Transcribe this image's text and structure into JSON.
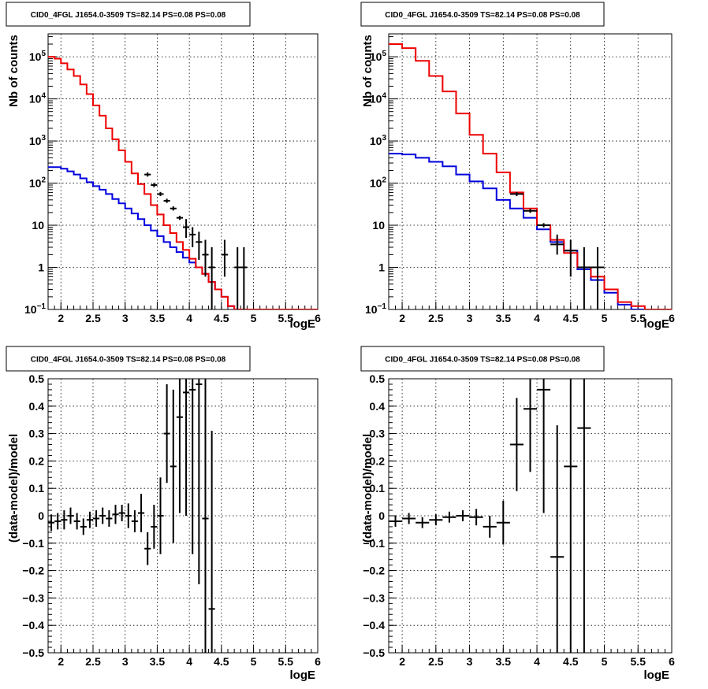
{
  "chart_data": [
    {
      "type": "histogram-log",
      "title": "CID0_4FGL J1654.0-3509 TS=82.14 PS=0.08 PS=0.08",
      "xlabel": "logE",
      "ylabel": "Nb of counts",
      "xlim": [
        1.8,
        6.0
      ],
      "ylim": [
        0.1,
        350000
      ],
      "ylog": true,
      "grid": true,
      "xticks": [
        "2",
        "2.5",
        "3",
        "3.5",
        "4",
        "4.5",
        "5",
        "5.5",
        "6"
      ],
      "yticks": [
        {
          "v": 0.1,
          "b": "10",
          "e": "−1"
        },
        {
          "v": 1,
          "b": "1",
          "e": ""
        },
        {
          "v": 10,
          "b": "10",
          "e": ""
        },
        {
          "v": 100,
          "b": "10",
          "e": "2"
        },
        {
          "v": 1000,
          "b": "10",
          "e": "3"
        },
        {
          "v": 10000,
          "b": "10",
          "e": "4"
        },
        {
          "v": 100000,
          "b": "10",
          "e": "5"
        }
      ],
      "series": [
        {
          "color": "#ee0000",
          "step": 0.1,
          "start": 1.8,
          "values": [
            100000,
            90000,
            70000,
            50000,
            35000,
            22000,
            13000,
            7000,
            4000,
            2000,
            1100,
            600,
            320,
            170,
            95,
            55,
            30,
            18,
            10,
            6.5,
            4,
            2.6,
            1.6,
            1.0,
            0.7,
            0.45,
            0.3,
            0.2,
            0.12,
            0.1,
            0.1,
            0.1,
            0.1,
            0.1,
            0.1,
            0.1,
            0.1,
            0.1,
            0.1,
            0.1,
            0.1,
            0.1
          ]
        },
        {
          "color": "#0000dd",
          "step": 0.1,
          "start": 1.8,
          "values": [
            240,
            240,
            220,
            190,
            160,
            130,
            105,
            85,
            70,
            55,
            42,
            33,
            25,
            19,
            14,
            10,
            7.5,
            5.5,
            4,
            3,
            2.3,
            1.7,
            1.3,
            1.0,
            0.7,
            0.45,
            0.3,
            0.2,
            0.12,
            0.1,
            0.1,
            0.1,
            0.1,
            0.1,
            0.1,
            0.1,
            0.1,
            0.1,
            0.1,
            0.1,
            0.1,
            0.1
          ]
        }
      ],
      "points": [
        {
          "x": 3.35,
          "y": 160,
          "hw": 0.05
        },
        {
          "x": 3.45,
          "y": 90,
          "hw": 0.05
        },
        {
          "x": 3.55,
          "y": 55,
          "hw": 0.05
        },
        {
          "x": 3.65,
          "y": 38,
          "hw": 0.05
        },
        {
          "x": 3.75,
          "y": 25,
          "hw": 0.05
        },
        {
          "x": 3.85,
          "y": 15,
          "hw": 0.05
        },
        {
          "x": 3.95,
          "y": 9,
          "hw": 0.05,
          "lo": 5,
          "hi": 14
        },
        {
          "x": 4.05,
          "y": 6,
          "hw": 0.05,
          "lo": 3,
          "hi": 9
        },
        {
          "x": 4.15,
          "y": 4,
          "hw": 0.05,
          "lo": 1.5,
          "hi": 7
        },
        {
          "x": 4.25,
          "y": 2,
          "hw": 0.05,
          "lo": 0.6,
          "hi": 4.5
        },
        {
          "x": 4.35,
          "y": 1,
          "hw": 0.05,
          "lo": 0.1,
          "hi": 3
        },
        {
          "x": 4.55,
          "y": 2,
          "hw": 0.05,
          "lo": 0.6,
          "hi": 4.5
        },
        {
          "x": 4.75,
          "y": 1,
          "hw": 0.05,
          "lo": 0.1,
          "hi": 3
        },
        {
          "x": 4.85,
          "y": 1,
          "hw": 0.05,
          "lo": 0.1,
          "hi": 3
        }
      ]
    },
    {
      "type": "histogram-log",
      "title": "CID0_4FGL J1654.0-3509 TS=82.14 PS=0.08 PS=0.08",
      "xlabel": "logE",
      "ylabel": "Nb of counts",
      "xlim": [
        1.8,
        6.0
      ],
      "ylim": [
        0.1,
        350000
      ],
      "ylog": true,
      "grid": true,
      "xticks": [
        "2",
        "2.5",
        "3",
        "3.5",
        "4",
        "4.5",
        "5",
        "5.5",
        "6"
      ],
      "yticks": [
        {
          "v": 0.1,
          "b": "10",
          "e": "−1"
        },
        {
          "v": 1,
          "b": "1",
          "e": ""
        },
        {
          "v": 10,
          "b": "10",
          "e": ""
        },
        {
          "v": 100,
          "b": "10",
          "e": "2"
        },
        {
          "v": 1000,
          "b": "10",
          "e": "3"
        },
        {
          "v": 10000,
          "b": "10",
          "e": "4"
        },
        {
          "v": 100000,
          "b": "10",
          "e": "5"
        }
      ],
      "series": [
        {
          "color": "#ee0000",
          "step": 0.2,
          "start": 1.8,
          "values": [
            200000,
            160000,
            80000,
            35000,
            15000,
            4500,
            1400,
            500,
            180,
            60,
            25,
            10,
            4.5,
            2.2,
            1.0,
            0.6,
            0.3,
            0.15,
            0.12,
            0.1,
            0.1
          ]
        },
        {
          "color": "#0000dd",
          "step": 0.2,
          "start": 1.8,
          "values": [
            500,
            480,
            400,
            320,
            250,
            160,
            110,
            75,
            40,
            25,
            15,
            8,
            4,
            2.5,
            0.9,
            0.5,
            0.25,
            0.13,
            0.1,
            0.1,
            0.1
          ]
        }
      ],
      "points": [
        {
          "x": 3.7,
          "y": 55,
          "hw": 0.1
        },
        {
          "x": 3.9,
          "y": 22,
          "hw": 0.1
        },
        {
          "x": 4.1,
          "y": 10,
          "hw": 0.1
        },
        {
          "x": 4.3,
          "y": 3.5,
          "hw": 0.1,
          "lo": 2,
          "hi": 6
        },
        {
          "x": 4.5,
          "y": 2.5,
          "hw": 0.1,
          "lo": 0.6,
          "hi": 4.5
        },
        {
          "x": 4.7,
          "y": 1,
          "hw": 0.1,
          "lo": 0.1,
          "hi": 3
        },
        {
          "x": 4.9,
          "y": 1,
          "hw": 0.1,
          "lo": 0.1,
          "hi": 3
        }
      ]
    },
    {
      "type": "residuals",
      "title": "CID0_4FGL J1654.0-3509 TS=82.14 PS=0.08 PS=0.08",
      "xlabel": "logE",
      "ylabel": "(data-model)/model",
      "xlim": [
        1.8,
        6.0
      ],
      "ylim": [
        -0.5,
        0.5
      ],
      "grid": true,
      "xticks": [
        "2",
        "2.5",
        "3",
        "3.5",
        "4",
        "4.5",
        "5",
        "5.5",
        "6"
      ],
      "yticks": [
        "−0.5",
        "−0.4",
        "−0.3",
        "−0.2",
        "−0.1",
        "0",
        "0.1",
        "0.2",
        "0.3",
        "0.4",
        "0.5"
      ],
      "points": [
        {
          "x": 1.85,
          "y": -0.025,
          "err": 0.03,
          "hw": 0.05
        },
        {
          "x": 1.95,
          "y": -0.02,
          "err": 0.03,
          "hw": 0.05
        },
        {
          "x": 2.05,
          "y": -0.015,
          "err": 0.035,
          "hw": 0.05
        },
        {
          "x": 2.15,
          "y": 0.0,
          "err": 0.03,
          "hw": 0.05
        },
        {
          "x": 2.25,
          "y": -0.02,
          "err": 0.03,
          "hw": 0.05
        },
        {
          "x": 2.35,
          "y": -0.04,
          "err": 0.03,
          "hw": 0.05
        },
        {
          "x": 2.45,
          "y": -0.015,
          "err": 0.03,
          "hw": 0.05
        },
        {
          "x": 2.55,
          "y": -0.01,
          "err": 0.03,
          "hw": 0.05
        },
        {
          "x": 2.65,
          "y": 0.0,
          "err": 0.03,
          "hw": 0.05
        },
        {
          "x": 2.75,
          "y": -0.01,
          "err": 0.03,
          "hw": 0.05
        },
        {
          "x": 2.85,
          "y": 0.005,
          "err": 0.035,
          "hw": 0.05
        },
        {
          "x": 2.95,
          "y": 0.01,
          "err": 0.03,
          "hw": 0.05
        },
        {
          "x": 3.05,
          "y": 0.0,
          "err": 0.045,
          "hw": 0.05
        },
        {
          "x": 3.15,
          "y": -0.02,
          "err": 0.04,
          "hw": 0.05
        },
        {
          "x": 3.25,
          "y": 0.01,
          "err": 0.07,
          "hw": 0.05
        },
        {
          "x": 3.35,
          "y": -0.12,
          "err": 0.06,
          "hw": 0.05
        },
        {
          "x": 3.45,
          "y": -0.04,
          "err": 0.08,
          "hw": 0.05
        },
        {
          "x": 3.55,
          "y": 0.0,
          "err": 0.14,
          "hw": 0.05
        },
        {
          "x": 3.65,
          "y": 0.3,
          "err": 0.18,
          "hw": 0.05
        },
        {
          "x": 3.75,
          "y": 0.18,
          "err": 0.28,
          "hw": 0.05
        },
        {
          "x": 3.85,
          "y": 0.36,
          "err": 0.35,
          "hw": 0.05
        },
        {
          "x": 3.95,
          "y": 0.45,
          "err": 0.45,
          "hw": 0.05
        },
        {
          "x": 4.05,
          "y": 0.46,
          "err": 0.6,
          "hw": 0.05
        },
        {
          "x": 4.15,
          "y": 0.48,
          "err": 0.73,
          "hw": 0.05
        },
        {
          "x": 4.25,
          "y": -0.01,
          "err": 0.6,
          "hw": 0.05
        },
        {
          "x": 4.35,
          "y": -0.34,
          "err": 0.65,
          "hw": 0.05
        }
      ]
    },
    {
      "type": "residuals",
      "title": "CID0_4FGL J1654.0-3509 TS=82.14 PS=0.08 PS=0.08",
      "xlabel": "logE",
      "ylabel": "(data-model)/model",
      "xlim": [
        1.8,
        6.0
      ],
      "ylim": [
        -0.5,
        0.5
      ],
      "grid": true,
      "xticks": [
        "2",
        "2.5",
        "3",
        "3.5",
        "4",
        "4.5",
        "5",
        "5.5",
        "6"
      ],
      "yticks": [
        "−0.5",
        "−0.4",
        "−0.3",
        "−0.2",
        "−0.1",
        "0",
        "0.1",
        "0.2",
        "0.3",
        "0.4",
        "0.5"
      ],
      "points": [
        {
          "x": 1.9,
          "y": -0.02,
          "err": 0.02,
          "hw": 0.1
        },
        {
          "x": 2.1,
          "y": -0.01,
          "err": 0.02,
          "hw": 0.1
        },
        {
          "x": 2.3,
          "y": -0.025,
          "err": 0.02,
          "hw": 0.1
        },
        {
          "x": 2.5,
          "y": -0.015,
          "err": 0.02,
          "hw": 0.1
        },
        {
          "x": 2.7,
          "y": -0.005,
          "err": 0.02,
          "hw": 0.1
        },
        {
          "x": 2.9,
          "y": 0.0,
          "err": 0.02,
          "hw": 0.1
        },
        {
          "x": 3.1,
          "y": -0.005,
          "err": 0.03,
          "hw": 0.1
        },
        {
          "x": 3.3,
          "y": -0.04,
          "err": 0.04,
          "hw": 0.1
        },
        {
          "x": 3.5,
          "y": -0.025,
          "err": 0.08,
          "hw": 0.1
        },
        {
          "x": 3.7,
          "y": 0.26,
          "err": 0.17,
          "hw": 0.1
        },
        {
          "x": 3.9,
          "y": 0.39,
          "err": 0.23,
          "hw": 0.1
        },
        {
          "x": 4.1,
          "y": 0.46,
          "err": 0.45,
          "hw": 0.1
        },
        {
          "x": 4.3,
          "y": -0.15,
          "err": 0.48,
          "hw": 0.1
        },
        {
          "x": 4.5,
          "y": 0.18,
          "err": 0.7,
          "hw": 0.1
        },
        {
          "x": 4.7,
          "y": 0.32,
          "err": 0.85,
          "hw": 0.1
        }
      ]
    }
  ]
}
